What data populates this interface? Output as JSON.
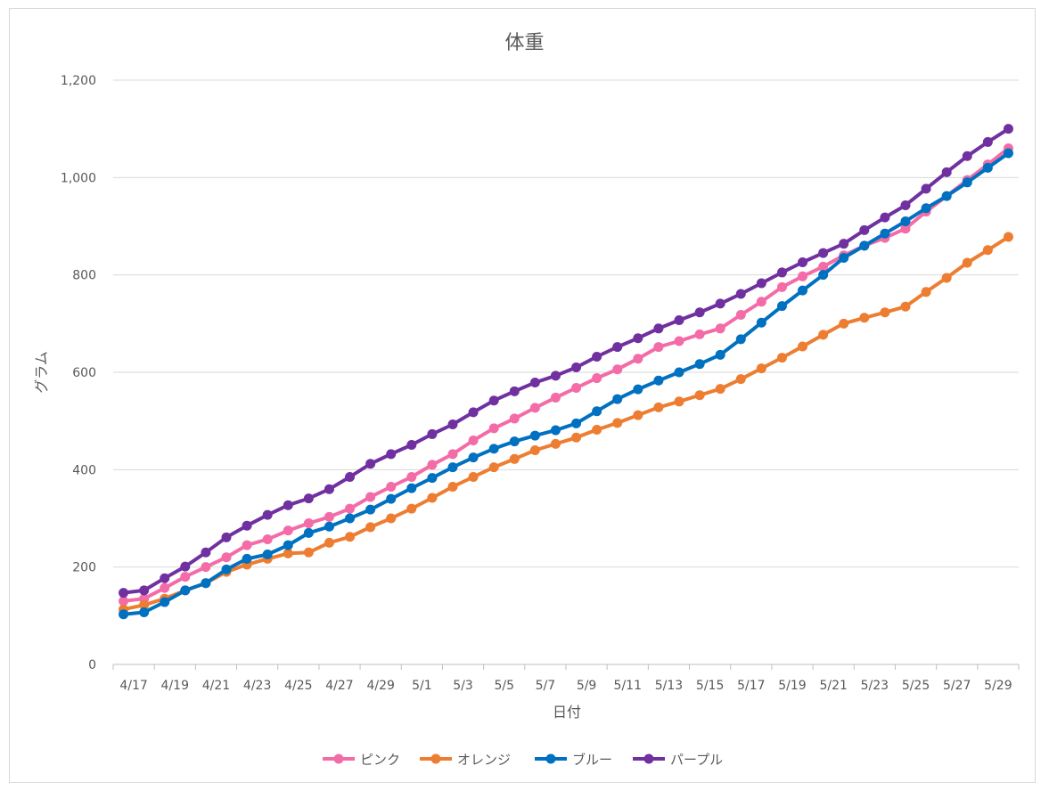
{
  "chart_data": {
    "type": "line",
    "title": "体重",
    "xlabel": "日付",
    "ylabel": "グラム",
    "ylim": [
      0,
      1200
    ],
    "yticks": [
      0,
      200,
      400,
      600,
      800,
      1000,
      1200
    ],
    "ytick_labels": [
      "0",
      "200",
      "400",
      "600",
      "800",
      "1,000",
      "1,200"
    ],
    "grid": "horizontal",
    "legend_position": "bottom",
    "categories": [
      "4/17",
      "4/18",
      "4/19",
      "4/20",
      "4/21",
      "4/22",
      "4/23",
      "4/24",
      "4/25",
      "4/26",
      "4/27",
      "4/28",
      "4/29",
      "4/30",
      "5/1",
      "5/2",
      "5/3",
      "5/4",
      "5/5",
      "5/6",
      "5/7",
      "5/8",
      "5/9",
      "5/10",
      "5/11",
      "5/12",
      "5/13",
      "5/14",
      "5/15",
      "5/16",
      "5/17",
      "5/18",
      "5/19",
      "5/20",
      "5/21",
      "5/22",
      "5/23",
      "5/24",
      "5/25",
      "5/26",
      "5/27",
      "5/28",
      "5/29",
      "5/30"
    ],
    "x_tick_labels": [
      "4/17",
      "4/19",
      "4/21",
      "4/23",
      "4/25",
      "4/27",
      "4/29",
      "5/1",
      "5/3",
      "5/5",
      "5/7",
      "5/9",
      "5/11",
      "5/13",
      "5/15",
      "5/17",
      "5/19",
      "5/21",
      "5/23",
      "5/25",
      "5/27",
      "5/29"
    ],
    "series": [
      {
        "name": "ピンク",
        "color": "#f36ca8",
        "values": [
          130,
          135,
          157,
          180,
          200,
          220,
          245,
          257,
          275,
          290,
          303,
          320,
          344,
          365,
          385,
          410,
          432,
          460,
          485,
          505,
          527,
          548,
          568,
          588,
          606,
          628,
          652,
          664,
          678,
          690,
          718,
          745,
          775,
          797,
          817,
          840,
          860,
          876,
          895,
          930,
          962,
          995,
          1027,
          1060
        ]
      },
      {
        "name": "オレンジ",
        "color": "#ed7d31",
        "values": [
          113,
          122,
          135,
          152,
          167,
          190,
          205,
          217,
          228,
          230,
          250,
          262,
          282,
          300,
          320,
          342,
          365,
          385,
          405,
          422,
          440,
          453,
          466,
          482,
          496,
          512,
          528,
          540,
          553,
          566,
          586,
          608,
          630,
          653,
          677,
          700,
          712,
          723,
          735,
          765,
          794,
          825,
          851,
          878
        ]
      },
      {
        "name": "ブルー",
        "color": "#0070c0",
        "values": [
          103,
          107,
          128,
          152,
          167,
          195,
          217,
          226,
          245,
          270,
          283,
          300,
          318,
          340,
          362,
          383,
          405,
          425,
          443,
          458,
          470,
          481,
          495,
          520,
          545,
          565,
          583,
          600,
          617,
          636,
          668,
          702,
          736,
          768,
          800,
          835,
          860,
          885,
          910,
          937,
          962,
          990,
          1020,
          1050
        ]
      },
      {
        "name": "パープル",
        "color": "#7030a0",
        "values": [
          147,
          152,
          177,
          201,
          230,
          261,
          285,
          307,
          327,
          341,
          360,
          385,
          412,
          432,
          451,
          473,
          493,
          518,
          542,
          561,
          579,
          593,
          610,
          632,
          652,
          670,
          690,
          707,
          723,
          741,
          761,
          783,
          805,
          826,
          845,
          864,
          892,
          918,
          943,
          977,
          1011,
          1044,
          1073,
          1100
        ]
      }
    ]
  }
}
